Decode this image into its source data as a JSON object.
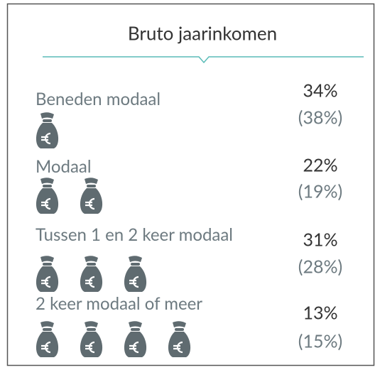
{
  "title": "Bruto jaarinkomen",
  "rows": [
    {
      "label": "Beneden modaal",
      "share": "34%",
      "comparison": "(38%)",
      "bags": 1
    },
    {
      "label": "Modaal",
      "share": "22%",
      "comparison": "(19%)",
      "bags": 2
    },
    {
      "label": "Tussen 1 en 2 keer modaal",
      "share": "31%",
      "comparison": "(28%)",
      "bags": 3
    },
    {
      "label": "2 keer modaal of meer",
      "share": "13%",
      "comparison": "(15%)",
      "bags": 4
    }
  ]
}
